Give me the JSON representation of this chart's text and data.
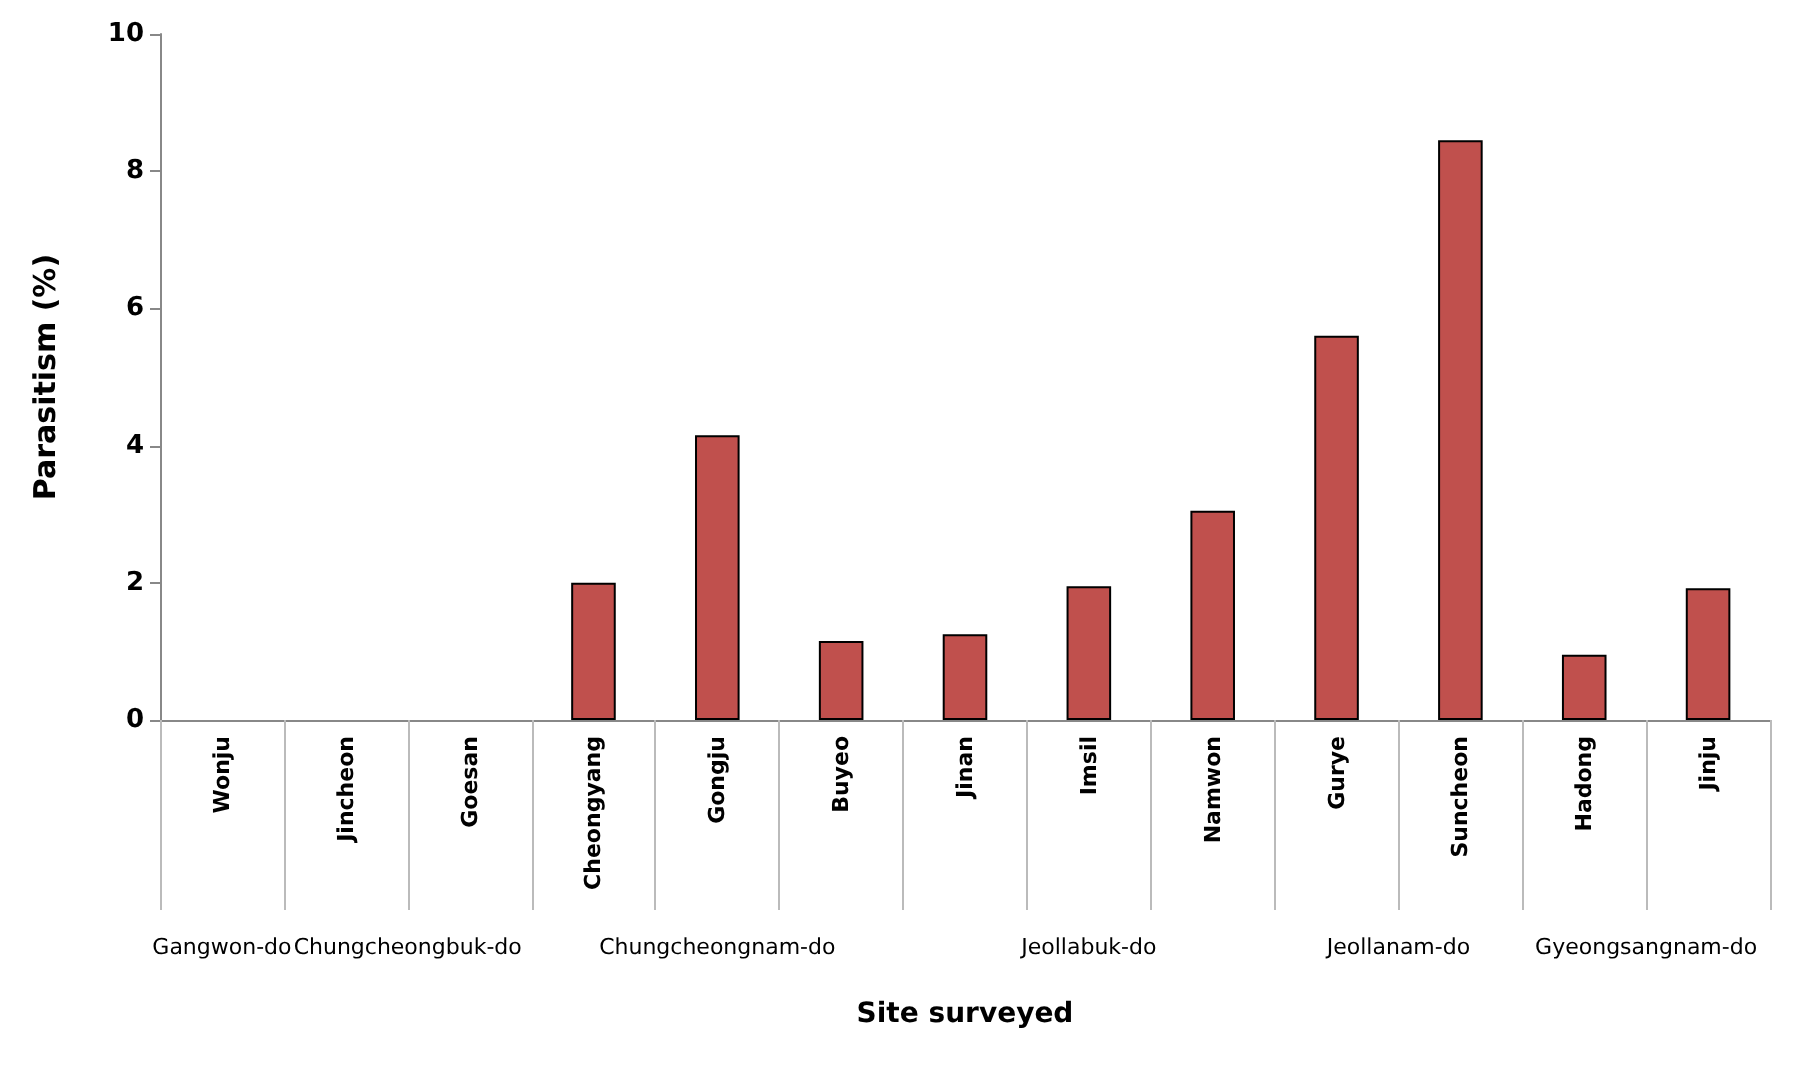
{
  "chart_data": {
    "type": "bar",
    "xlabel": "Site surveyed",
    "ylabel": "Parasitism (%)",
    "categories": [
      "Wonju",
      "Jincheon",
      "Goesan",
      "Cheongyang",
      "Gongju",
      "Buyeo",
      "Jinan",
      "Imsil",
      "Namwon",
      "Gurye",
      "Suncheon",
      "Hadong",
      "Jinju"
    ],
    "values": [
      0,
      0,
      0,
      2.0,
      4.15,
      1.15,
      1.25,
      1.95,
      3.05,
      5.6,
      8.45,
      0.95,
      1.92
    ],
    "color": "#c0504d",
    "ylim": [
      0,
      10
    ],
    "yticks": [
      0,
      2,
      4,
      6,
      8,
      10
    ],
    "grid": false,
    "annotations": [
      "Gangwon-do",
      "Chungcheongbuk-do",
      "Chungcheongnam-do",
      "Jeollabuk-do",
      "Jeollanam-do",
      "Gyeongsangnam-do"
    ]
  }
}
